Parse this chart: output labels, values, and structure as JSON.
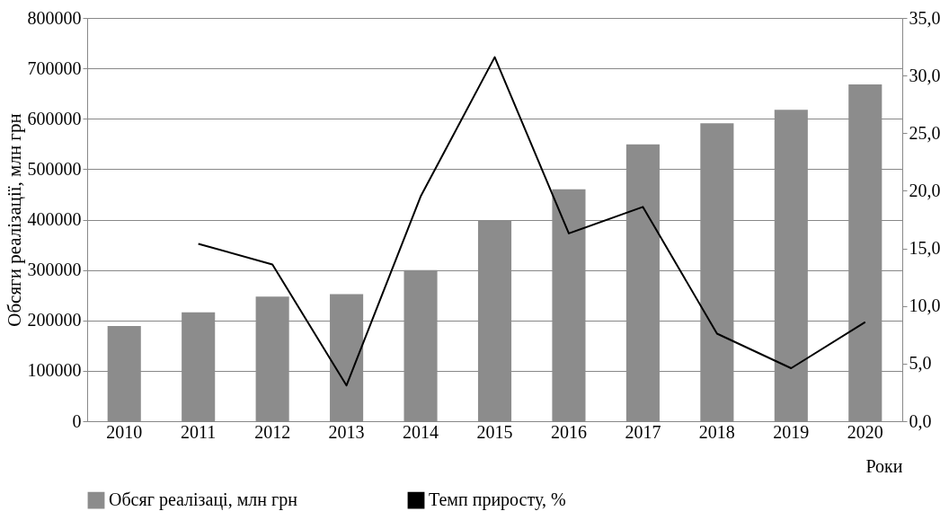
{
  "chart_data": {
    "type": "bar",
    "categories": [
      "2010",
      "2011",
      "2012",
      "2013",
      "2014",
      "2015",
      "2016",
      "2017",
      "2018",
      "2019",
      "2020"
    ],
    "series": [
      {
        "name": "Обсяг реалізаці, млн грн",
        "color": "#8c8c8c",
        "values": [
          189000,
          216000,
          247000,
          252000,
          300000,
          399000,
          460000,
          549000,
          591000,
          618000,
          668000
        ]
      },
      {
        "name": "Темп приросту, %",
        "type": "line",
        "axis": "y2",
        "color": "#000000",
        "values": [
          null,
          15.4,
          13.6,
          3.1,
          19.5,
          31.6,
          16.3,
          18.6,
          7.6,
          4.6,
          8.6
        ]
      }
    ],
    "ylabel": "Обсяги реалізації, млн грн",
    "xlabel": "Роки",
    "ylim": [
      0,
      800000
    ],
    "yticks": [
      0,
      100000,
      200000,
      300000,
      400000,
      500000,
      600000,
      700000,
      800000
    ],
    "y2lim": [
      0,
      35
    ],
    "y2ticks": [
      {
        "value": 0,
        "label": "0,0"
      },
      {
        "value": 5,
        "label": "5,0"
      },
      {
        "value": 10,
        "label": "10,0"
      },
      {
        "value": 15,
        "label": "15,0"
      },
      {
        "value": 20,
        "label": "20,0"
      },
      {
        "value": 25,
        "label": "25,0"
      },
      {
        "value": 30,
        "label": "30,0"
      },
      {
        "value": 35,
        "label": "35,0"
      }
    ],
    "grid": "y",
    "legend": "bottom"
  }
}
